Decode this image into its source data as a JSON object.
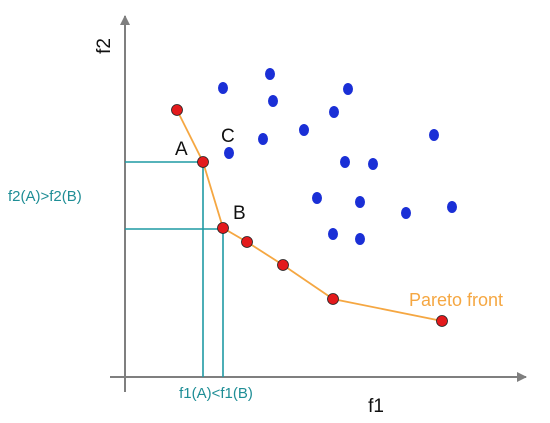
{
  "labels": {
    "x_axis": "f1",
    "y_axis": "f2",
    "point_a": "A",
    "point_b": "B",
    "point_c": "C",
    "f2_comparison": "f2(A)>f2(B)",
    "f1_comparison": "f1(A)<f1(B)",
    "pareto_front": "Pareto front"
  },
  "colors": {
    "axis": "#7f7f7f",
    "pareto_point": "#e31a1c",
    "pareto_outline": "#222222",
    "pareto_line": "#f5a742",
    "dominated_point": "#1a2fd6",
    "guide_line": "#1f9aa3",
    "comparison_text": "#1f8e96",
    "label_text": "#111111",
    "pareto_text": "#f5a742"
  }
}
